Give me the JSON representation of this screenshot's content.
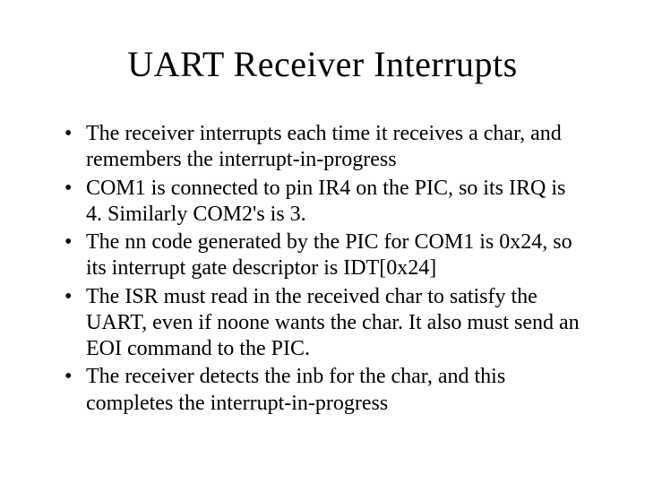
{
  "slide": {
    "title": "UART Receiver Interrupts",
    "title_fontsize": 40,
    "title_color": "#000000",
    "title_align": "center",
    "body_fontsize": 24,
    "body_color": "#000000",
    "background_color": "#ffffff",
    "font_family": "Times New Roman",
    "bullet_char": "•",
    "bullets": [
      "The receiver interrupts each time it receives a char, and remembers the interrupt-in-progress",
      "COM1 is connected to pin IR4 on the PIC, so its IRQ is 4.  Similarly COM2's is 3.",
      "The nn code generated by the PIC for COM1 is 0x24, so its interrupt gate descriptor is IDT[0x24]",
      "The ISR must read in the received char to satisfy the UART, even if noone wants the char.  It also must send an EOI command to the PIC.",
      "The receiver detects the inb for the char, and this completes the interrupt-in-progress"
    ]
  }
}
